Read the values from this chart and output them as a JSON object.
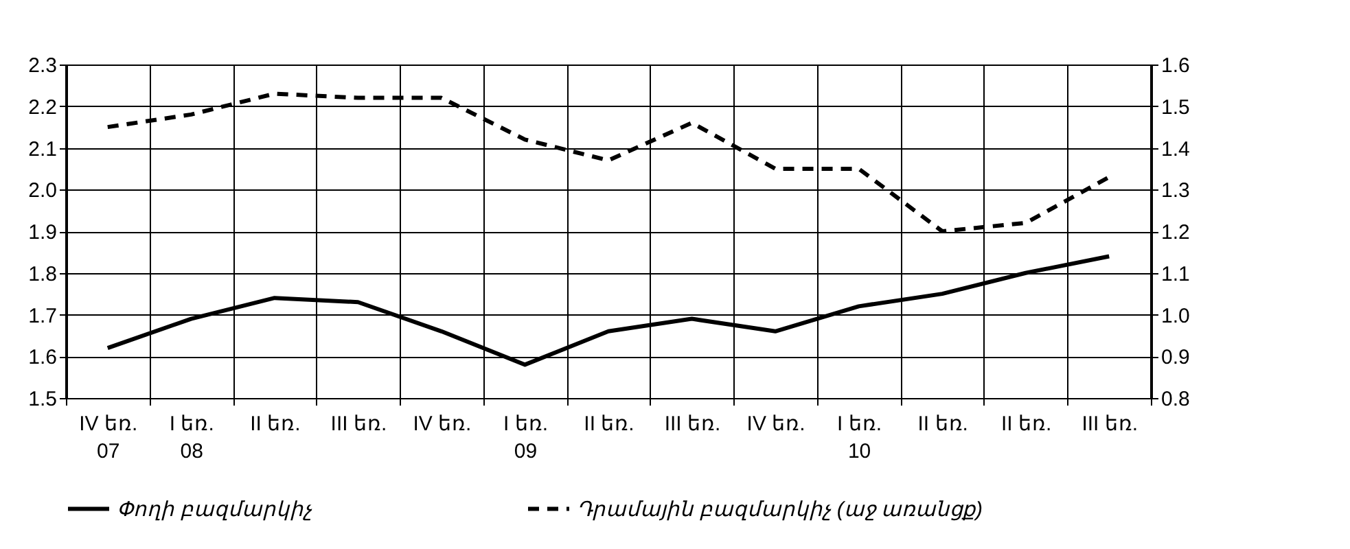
{
  "chart_data": {
    "type": "line",
    "categories": [
      "IV եռ.\n07",
      "I եռ.\n08",
      "II եռ.",
      "III եռ.",
      "IV եռ.",
      "I եռ.\n09",
      "II եռ.",
      "III եռ.",
      "IV եռ.",
      "I եռ.\n10",
      "II եռ.",
      "II եռ.",
      "III եռ."
    ],
    "series": [
      {
        "name": "Փողի բազմարկիչ",
        "color": "#000000",
        "line_style": "solid",
        "values": [
          1.62,
          1.69,
          1.74,
          1.73,
          1.66,
          1.58,
          1.66,
          1.69,
          1.66,
          1.72,
          1.75,
          1.8,
          1.84
        ]
      },
      {
        "name": "Դրամային բազմարկիչ (աջ առանցք)",
        "color": "#000000",
        "line_style": "dashed",
        "axis": "y2",
        "values": [
          1.45,
          1.48,
          1.53,
          1.52,
          1.52,
          1.42,
          1.37,
          1.46,
          1.35,
          1.35,
          1.2,
          1.22,
          1.33
        ]
      }
    ],
    "ylim": [
      1.5,
      2.3
    ],
    "yticks": [
      1.5,
      1.6,
      1.7,
      1.8,
      1.9,
      {
        "value": 2,
        "label": "2.0"
      },
      2.1,
      2.2,
      2.3
    ],
    "y2lim": [
      0.8,
      1.6
    ],
    "y2ticks": [
      0.8,
      0.9,
      {
        "value": 1,
        "label": "1.0"
      },
      1.1,
      1.2,
      1.3,
      1.4,
      1.5,
      1.6
    ],
    "grid": true,
    "legend": "bottom",
    "marker": "none"
  }
}
